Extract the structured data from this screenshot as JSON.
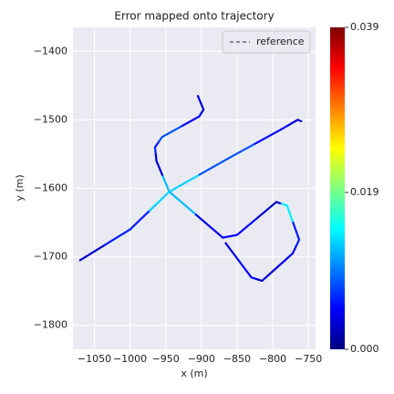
{
  "chart_data": {
    "type": "trajectory",
    "title": "Error mapped onto trajectory",
    "x_label": "x (m)",
    "y_label": "y (m)",
    "xlim": [
      -1080,
      -740
    ],
    "ylim": [
      -1835,
      -1365
    ],
    "xticks": [
      {
        "value": -1050,
        "label": "−1050"
      },
      {
        "value": -1000,
        "label": "−1000"
      },
      {
        "value": -950,
        "label": "−950"
      },
      {
        "value": -900,
        "label": "−900"
      },
      {
        "value": -850,
        "label": "−850"
      },
      {
        "value": -800,
        "label": "−800"
      },
      {
        "value": -750,
        "label": "−750"
      }
    ],
    "yticks": [
      {
        "value": -1800,
        "label": "−1800"
      },
      {
        "value": -1700,
        "label": "−1700"
      },
      {
        "value": -1600,
        "label": "−1600"
      },
      {
        "value": -1500,
        "label": "−1500"
      },
      {
        "value": -1400,
        "label": "−1400"
      }
    ],
    "grid": true,
    "background": "#eaeaf2",
    "legend": "upper right",
    "series": [
      {
        "name": "reference",
        "color": "#666666",
        "dashed": true,
        "x": [
          -905,
          -897,
          -903,
          -955,
          -965,
          -963,
          -945,
          -870,
          -850,
          -795,
          -780,
          -763,
          -772,
          -815,
          -830,
          -866,
          null,
          -1070,
          -1000,
          -945,
          -860,
          -790,
          -765,
          -760
        ],
        "y": [
          -1465,
          -1485,
          -1495,
          -1525,
          -1540,
          -1560,
          -1605,
          -1672,
          -1668,
          -1620,
          -1625,
          -1675,
          -1695,
          -1735,
          -1730,
          -1680,
          null,
          -1705,
          -1660,
          -1605,
          -1555,
          -1515,
          -1500,
          -1502
        ]
      }
    ],
    "trajectory": {
      "x": [
        -905,
        -897,
        -903,
        -955,
        -965,
        -963,
        -945,
        -870,
        -850,
        -795,
        -780,
        -763,
        -772,
        -815,
        -830,
        -866,
        null,
        -1070,
        -1000,
        -945,
        -860,
        -790,
        -765,
        -760
      ],
      "y": [
        -1465,
        -1485,
        -1495,
        -1525,
        -1540,
        -1560,
        -1605,
        -1672,
        -1668,
        -1620,
        -1625,
        -1675,
        -1695,
        -1735,
        -1730,
        -1680,
        null,
        -1705,
        -1660,
        -1605,
        -1555,
        -1515,
        -1500,
        -1502
      ],
      "error": [
        0.004,
        0.003,
        0.005,
        0.008,
        0.006,
        0.003,
        0.012,
        0.004,
        0.005,
        0.003,
        0.014,
        0.006,
        0.004,
        0.003,
        0.005,
        0.004,
        null,
        0.003,
        0.006,
        0.013,
        0.008,
        0.005,
        0.003,
        0.004
      ]
    },
    "colorbar": {
      "lim": [
        0,
        0.039
      ],
      "ticks": [
        {
          "value": 0,
          "label": "0.000"
        },
        0.019,
        0.039
      ],
      "colors": [
        "#00007f",
        "#0000ff",
        "#007fff",
        "#00ffff",
        "#7fff7f",
        "#ffff00",
        "#ff7f00",
        "#ff0000",
        "#7f0000"
      ]
    }
  }
}
